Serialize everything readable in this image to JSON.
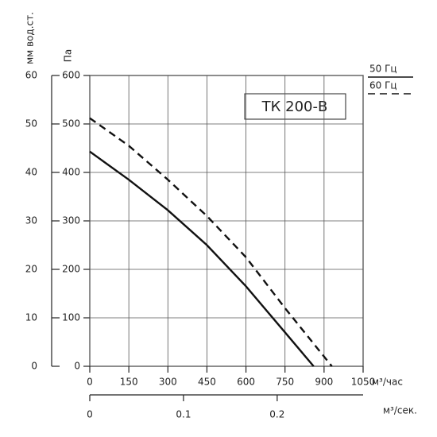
{
  "chart_data": {
    "type": "line",
    "title": "ТК 200-В",
    "ylabel": "Па",
    "y2label": "мм вод.ст.",
    "xlabel": "м³/час",
    "x2label": "м³/сек.",
    "x": [
      0,
      150,
      300,
      450,
      600,
      750,
      860
    ],
    "series": [
      {
        "name": "50 Гц",
        "color": "#111111",
        "style": "solid",
        "x": [
          0,
          150,
          300,
          450,
          600,
          750,
          860
        ],
        "values": [
          443,
          385,
          322,
          250,
          165,
          70,
          0
        ]
      },
      {
        "name": "60 Гц",
        "color": "#111111",
        "style": "dashed",
        "x": [
          0,
          150,
          300,
          450,
          600,
          750,
          930
        ],
        "values": [
          512,
          455,
          385,
          310,
          225,
          120,
          0
        ]
      }
    ],
    "xlim": [
      0,
      1050
    ],
    "xticks": [
      0,
      150,
      300,
      450,
      600,
      750,
      900,
      1050
    ],
    "x2lim": [
      0,
      0.2917
    ],
    "x2ticks": [
      0,
      0.1,
      0.2
    ],
    "ylim": [
      0,
      600
    ],
    "yticks": [
      0,
      100,
      200,
      300,
      400,
      500,
      600
    ],
    "y2lim": [
      0,
      60
    ],
    "y2ticks": [
      0,
      10,
      20,
      30,
      40,
      50,
      60
    ],
    "grid": true
  }
}
